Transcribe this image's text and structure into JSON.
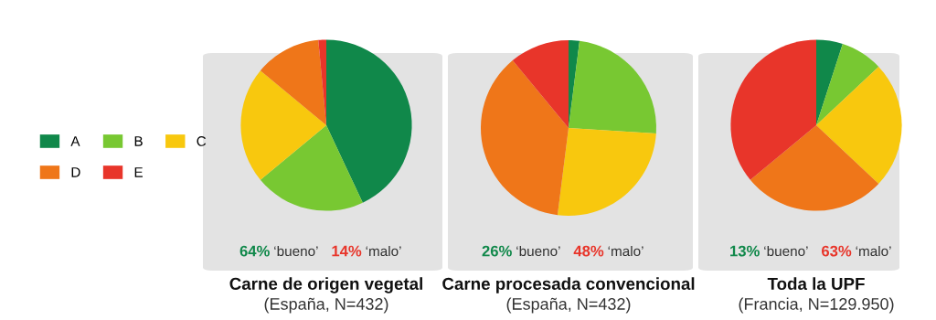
{
  "chart_data": [
    {
      "type": "pie",
      "title": "Carne de origen vegetal",
      "subtitle": "(España, N=432)",
      "categories": [
        "A",
        "B",
        "C",
        "D",
        "E"
      ],
      "values": [
        43,
        21,
        22,
        12.5,
        1.5
      ],
      "colors": [
        "#10884a",
        "#78c832",
        "#f8c80e",
        "#ef7619",
        "#e8352a"
      ],
      "annotations": [
        "64% ‘bueno’",
        "14% ‘malo’"
      ],
      "legend": "left"
    },
    {
      "type": "pie",
      "title": "Carne procesada convencional",
      "subtitle": "(España, N=432)",
      "categories": [
        null,
        null,
        null,
        null,
        null
      ],
      "values": [
        2,
        24,
        26,
        37,
        11
      ],
      "colors": [
        "#10884a",
        "#78c832",
        "#f8c80e",
        "#ef7619",
        "#e8352a"
      ],
      "annotations": [
        "26% ‘bueno’",
        "48% ‘malo’"
      ]
    },
    {
      "type": "pie",
      "title": "Toda la UPF",
      "subtitle": "(Francia, N=129.950)",
      "categories": [
        null,
        null,
        null,
        null,
        null
      ],
      "values": [
        5,
        8,
        24,
        27,
        36
      ],
      "colors": [
        "#10884a",
        "#78c832",
        "#f8c80e",
        "#ef7619",
        "#e8352a"
      ],
      "annotations": [
        "13% ‘bueno’",
        "63% ‘malo’"
      ]
    }
  ]
}
